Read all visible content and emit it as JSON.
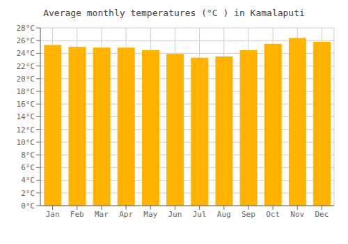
{
  "chart_data": {
    "type": "bar",
    "title": "Average monthly temperatures (°C ) in Kamalaputi",
    "categories": [
      "Jan",
      "Feb",
      "Mar",
      "Apr",
      "May",
      "Jun",
      "Jul",
      "Aug",
      "Sep",
      "Oct",
      "Nov",
      "Dec"
    ],
    "values": [
      25.3,
      25.0,
      24.9,
      24.9,
      24.5,
      23.9,
      23.3,
      23.5,
      24.5,
      25.5,
      26.4,
      25.8
    ],
    "color": "#FFB300",
    "ylim": [
      0,
      28
    ],
    "yticks": [
      {
        "value": 0,
        "label": "0°C"
      },
      {
        "value": 2,
        "label": "2°C"
      },
      {
        "value": 4,
        "label": "4°C"
      },
      {
        "value": 6,
        "label": "6°C"
      },
      {
        "value": 8,
        "label": "8°C"
      },
      {
        "value": 10,
        "label": "10°C"
      },
      {
        "value": 12,
        "label": "12°C"
      },
      {
        "value": 14,
        "label": "14°C"
      },
      {
        "value": 16,
        "label": "16°C"
      },
      {
        "value": 18,
        "label": "18°C"
      },
      {
        "value": 20,
        "label": "20°C"
      },
      {
        "value": 22,
        "label": "22°C"
      },
      {
        "value": 24,
        "label": "24°C"
      },
      {
        "value": 26,
        "label": "26°C"
      },
      {
        "value": 28,
        "label": "28°C"
      }
    ],
    "grid": true
  }
}
